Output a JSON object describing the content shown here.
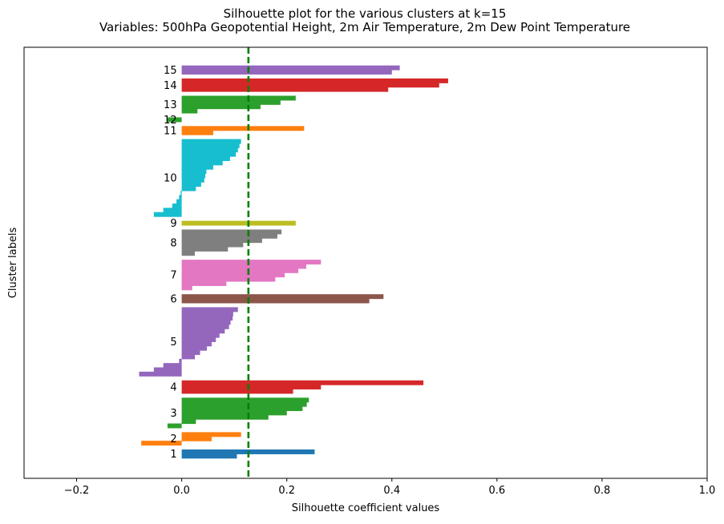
{
  "chart_data": {
    "type": "bar",
    "orientation": "horizontal",
    "title": "Silhouette plot for the various clusters at k=15",
    "subtitle": "Variables: 500hPa Geopotential Height, 2m Air Temperature, 2m Dew Point Temperature",
    "xlabel": "Silhouette coefficient values",
    "ylabel": "Cluster labels",
    "xlim": [
      -0.3,
      1.0
    ],
    "xticks": [
      "−0.2",
      "0.0",
      "0.2",
      "0.4",
      "0.6",
      "0.8",
      "1.0"
    ],
    "xtick_values": [
      -0.2,
      0.0,
      0.2,
      0.4,
      0.6,
      0.8,
      1.0
    ],
    "average_silhouette": 0.127,
    "average_line_color": "#008000",
    "grid": false,
    "clusters": [
      {
        "label": "1",
        "color": "#1f77b4",
        "values": [
          0.105,
          0.253
        ]
      },
      {
        "label": "2",
        "color": "#ff7f0e",
        "values": [
          -0.077,
          0.057,
          0.113
        ]
      },
      {
        "label": "3",
        "color": "#2ca02c",
        "values": [
          -0.027,
          0.027,
          0.165,
          0.2,
          0.23,
          0.238,
          0.242
        ]
      },
      {
        "label": "4",
        "color": "#d62728",
        "values": [
          0.212,
          0.265,
          0.46
        ]
      },
      {
        "label": "5",
        "color": "#9467bd",
        "values": [
          -0.081,
          -0.053,
          -0.035,
          -0.005,
          0.025,
          0.035,
          0.048,
          0.057,
          0.065,
          0.072,
          0.082,
          0.09,
          0.093,
          0.097,
          0.098,
          0.107
        ]
      },
      {
        "label": "6",
        "color": "#8c564b",
        "values": [
          0.357,
          0.384
        ]
      },
      {
        "label": "7",
        "color": "#e377c2",
        "values": [
          0.02,
          0.085,
          0.178,
          0.196,
          0.222,
          0.237,
          0.265
        ]
      },
      {
        "label": "8",
        "color": "#7f7f7f",
        "values": [
          0.025,
          0.088,
          0.117,
          0.153,
          0.182,
          0.19
        ]
      },
      {
        "label": "9",
        "color": "#bcbd22",
        "values": [
          0.217
        ]
      },
      {
        "label": "10",
        "color": "#17becf",
        "values": [
          -0.053,
          -0.035,
          -0.018,
          -0.01,
          -0.005,
          -0.002,
          0.027,
          0.037,
          0.043,
          0.045,
          0.047,
          0.06,
          0.078,
          0.092,
          0.103,
          0.107,
          0.11,
          0.113
        ]
      },
      {
        "label": "11",
        "color": "#ff7f0e",
        "values": [
          0.06,
          0.233
        ]
      },
      {
        "label": "12",
        "color": "#2ca02c",
        "values": [
          -0.027
        ]
      },
      {
        "label": "13",
        "color": "#2ca02c",
        "values": [
          0.03,
          0.15,
          0.188,
          0.217
        ]
      },
      {
        "label": "14",
        "color": "#d62728",
        "values": [
          0.393,
          0.49,
          0.507
        ]
      },
      {
        "label": "15",
        "color": "#9467bd",
        "values": [
          0.4,
          0.415
        ]
      }
    ]
  }
}
